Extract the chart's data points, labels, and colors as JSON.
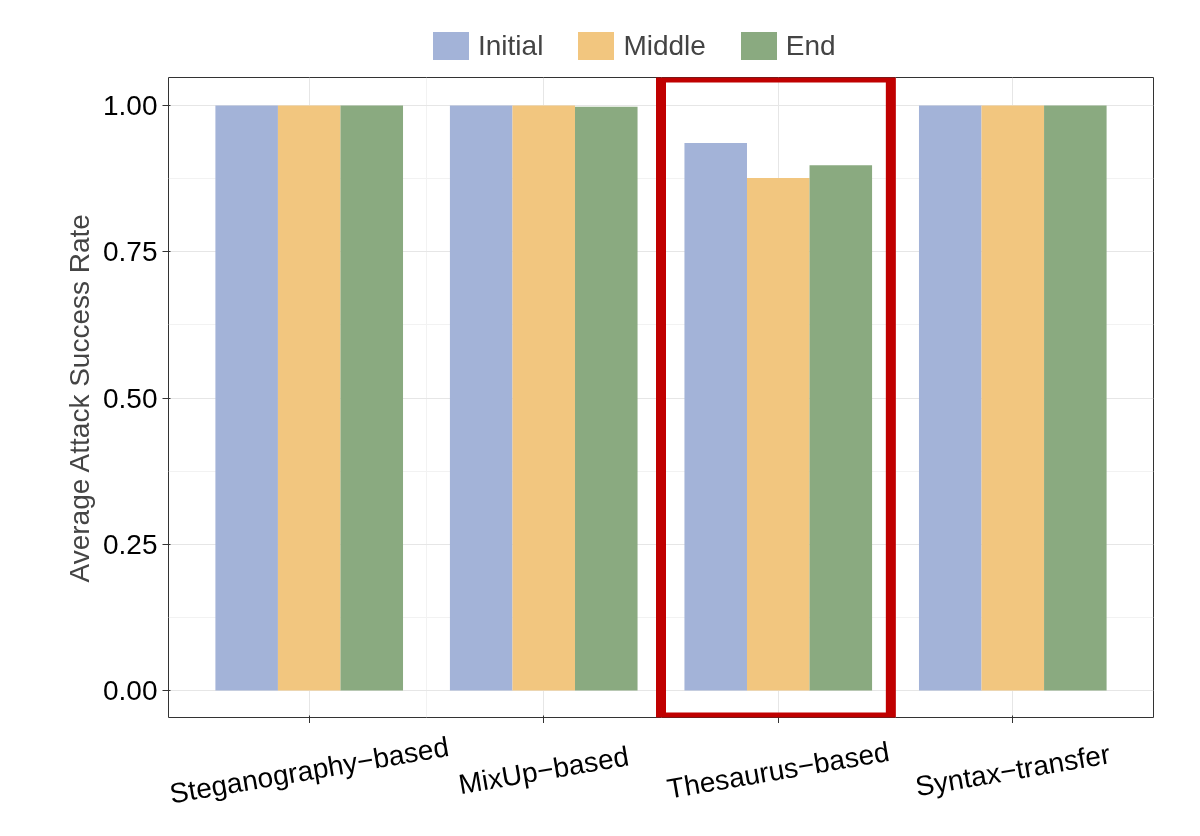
{
  "chart_data": {
    "type": "bar",
    "ylabel": "Average Attack Success Rate",
    "categories": [
      "Steganography−based",
      "MixUp−based",
      "Thesaurus−based",
      "Syntax−transfer"
    ],
    "series": [
      {
        "name": "Initial",
        "color": "#a3b3d8",
        "values": [
          1.0,
          1.0,
          0.936,
          1.0
        ]
      },
      {
        "name": "Middle",
        "color": "#f2c67f",
        "values": [
          1.0,
          1.0,
          0.876,
          1.0
        ]
      },
      {
        "name": "End",
        "color": "#8aaa80",
        "values": [
          1.0,
          0.998,
          0.898,
          1.0
        ]
      }
    ],
    "ylim": [
      -0.046,
      1.048
    ],
    "yticks": [
      {
        "value": 0,
        "label": "0.00"
      },
      {
        "value": 0.25,
        "label": "0.25"
      },
      {
        "value": 0.5,
        "label": "0.50"
      },
      {
        "value": 0.75,
        "label": "0.75"
      },
      {
        "value": 1,
        "label": "1.00"
      }
    ],
    "grid": true,
    "legend": "top"
  }
}
